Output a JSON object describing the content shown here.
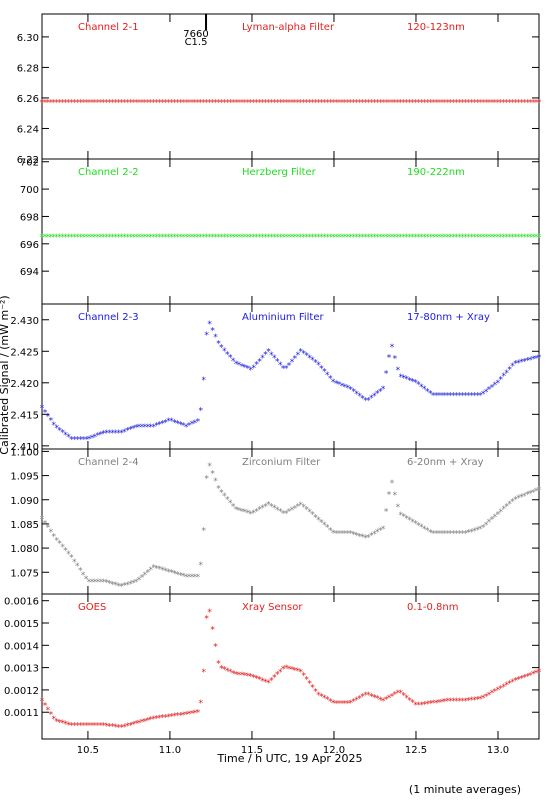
{
  "chart_data": [
    {
      "type": "scatter",
      "channel": "Channel 2-1",
      "filter": "Lyman-alpha Filter",
      "band": "120-123nm",
      "color": "#e02020",
      "ylim": [
        6.22,
        6.315
      ],
      "yticks": [
        6.22,
        6.24,
        6.26,
        6.28,
        6.3
      ],
      "yfmt": 2,
      "series": [
        {
          "x": [
            10.22,
            11.25,
            12.0,
            13.25
          ],
          "y": [
            6.257,
            6.257,
            6.257,
            6.257
          ]
        }
      ]
    },
    {
      "type": "scatter",
      "channel": "Channel 2-2",
      "filter": "Herzberg Filter",
      "band": "190-222nm",
      "color": "#22dd22",
      "ylim": [
        691.6,
        702.2
      ],
      "yticks": [
        694,
        696,
        698,
        700,
        702
      ],
      "yfmt": 0,
      "series": [
        {
          "x": [
            10.22,
            11.25,
            12.0,
            13.25
          ],
          "y": [
            696.5,
            696.5,
            696.5,
            696.5
          ]
        }
      ]
    },
    {
      "type": "scatter",
      "channel": "Channel 2-3",
      "filter": "Aluminium Filter",
      "band": "17-80nm + Xray",
      "color": "#1c1cdc",
      "ylim": [
        2.4095,
        2.4325
      ],
      "yticks": [
        2.41,
        2.415,
        2.42,
        2.425,
        2.43
      ],
      "yfmt": 3,
      "series": [
        {
          "x": [
            10.22,
            10.3,
            10.4,
            10.5,
            10.6,
            10.7,
            10.8,
            10.9,
            11.0,
            11.1,
            11.18,
            11.2,
            11.23,
            11.3,
            11.4,
            11.5,
            11.6,
            11.7,
            11.8,
            11.9,
            12.0,
            12.1,
            12.2,
            12.3,
            12.35,
            12.4,
            12.5,
            12.6,
            12.7,
            12.8,
            12.9,
            13.0,
            13.1,
            13.25
          ],
          "y": [
            2.416,
            2.413,
            2.411,
            2.411,
            2.412,
            2.412,
            2.413,
            2.413,
            2.414,
            2.413,
            2.414,
            2.418,
            2.43,
            2.426,
            2.423,
            2.422,
            2.425,
            2.422,
            2.425,
            2.423,
            2.42,
            2.419,
            2.417,
            2.419,
            2.426,
            2.421,
            2.42,
            2.418,
            2.418,
            2.418,
            2.418,
            2.42,
            2.423,
            2.424
          ]
        }
      ]
    },
    {
      "type": "scatter",
      "channel": "Channel 2-4",
      "filter": "Zirconium Filter",
      "band": "6-20nm + Xray",
      "color": "#808080",
      "ylim": [
        1.0705,
        1.1005
      ],
      "yticks": [
        1.075,
        1.08,
        1.085,
        1.09,
        1.095,
        1.1
      ],
      "yfmt": 3,
      "series": [
        {
          "x": [
            10.22,
            10.3,
            10.4,
            10.5,
            10.6,
            10.7,
            10.8,
            10.9,
            11.0,
            11.1,
            11.18,
            11.2,
            11.23,
            11.3,
            11.4,
            11.5,
            11.6,
            11.7,
            11.8,
            11.9,
            12.0,
            12.1,
            12.2,
            12.3,
            12.35,
            12.4,
            12.5,
            12.6,
            12.7,
            12.8,
            12.9,
            13.0,
            13.1,
            13.25
          ],
          "y": [
            1.086,
            1.082,
            1.078,
            1.073,
            1.073,
            1.072,
            1.073,
            1.076,
            1.075,
            1.074,
            1.074,
            1.08,
            1.098,
            1.092,
            1.088,
            1.087,
            1.089,
            1.087,
            1.089,
            1.086,
            1.083,
            1.083,
            1.082,
            1.084,
            1.094,
            1.087,
            1.085,
            1.083,
            1.083,
            1.083,
            1.084,
            1.087,
            1.09,
            1.092
          ]
        }
      ]
    },
    {
      "type": "scatter",
      "channel": "GOES",
      "filter": "Xray Sensor",
      "band": "0.1-0.8nm",
      "color": "#e02020",
      "ylim": [
        0.00098,
        0.00163
      ],
      "yticks": [
        0.0011,
        0.0012,
        0.0013,
        0.0014,
        0.0015,
        0.0016
      ],
      "yfmt": 4,
      "series": [
        {
          "x": [
            10.22,
            10.3,
            10.4,
            10.5,
            10.6,
            10.7,
            10.8,
            10.9,
            11.0,
            11.1,
            11.18,
            11.2,
            11.23,
            11.3,
            11.4,
            11.5,
            11.6,
            11.7,
            11.8,
            11.9,
            12.0,
            12.1,
            12.2,
            12.3,
            12.4,
            12.5,
            12.6,
            12.7,
            12.8,
            12.9,
            13.0,
            13.1,
            13.25
          ],
          "y": [
            0.00115,
            0.00106,
            0.00104,
            0.00104,
            0.00104,
            0.00103,
            0.00105,
            0.00107,
            0.00108,
            0.00109,
            0.0011,
            0.0012,
            0.0016,
            0.0013,
            0.00127,
            0.00126,
            0.00123,
            0.0013,
            0.00128,
            0.00118,
            0.00114,
            0.00114,
            0.00118,
            0.00115,
            0.00119,
            0.00113,
            0.00114,
            0.00115,
            0.00115,
            0.00116,
            0.0012,
            0.00124,
            0.00128
          ]
        }
      ]
    }
  ],
  "xaxis": {
    "ticks": [
      10.5,
      11.0,
      11.5,
      12.0,
      12.5,
      13.0
    ],
    "xlim": [
      10.22,
      13.25
    ],
    "label": "Time / h UTC, 19 Apr 2025"
  },
  "ylabel": "Calibrated Signal / (mW m⁻²)",
  "annotation": {
    "code": "7660",
    "class": "C1.5",
    "x": 11.22
  },
  "footnote": "(1 minute averages)"
}
